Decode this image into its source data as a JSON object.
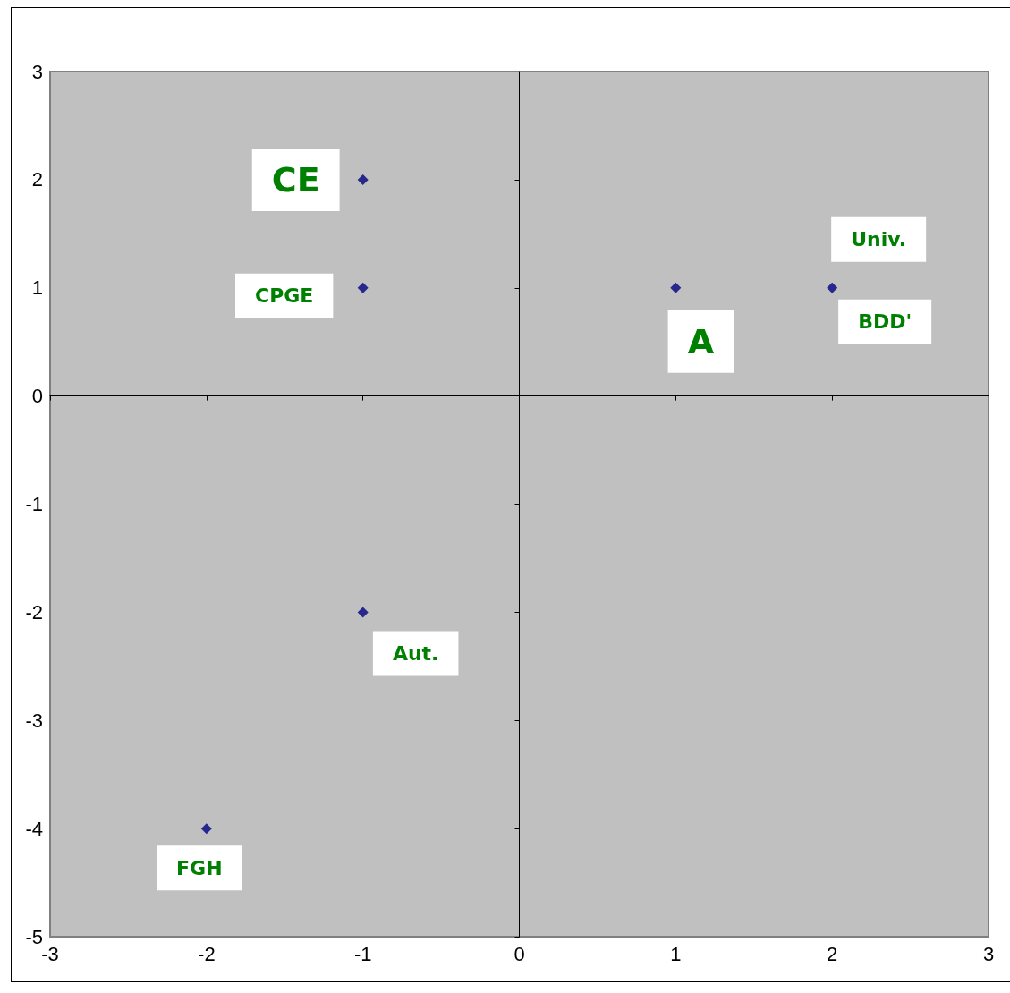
{
  "chart_data": {
    "type": "scatter",
    "x": [
      -1,
      -1,
      1,
      2,
      -1,
      -2
    ],
    "values": [
      2,
      1,
      1,
      1,
      -2,
      -4
    ],
    "color": "#000080",
    "marker": "diamond",
    "xlim": [
      -3,
      3
    ],
    "ylim": [
      -5,
      3
    ],
    "xticks": [
      -3,
      -2,
      -1,
      0,
      1,
      2,
      3
    ],
    "yticks": [
      -5,
      -4,
      -3,
      -2,
      -1,
      0,
      1,
      2,
      3
    ],
    "annotations": [
      {
        "text": "CE",
        "x": -1,
        "y": 2
      },
      {
        "text": "CPGE",
        "x": -1,
        "y": 1
      },
      {
        "text": "A",
        "x": 1,
        "y": 1
      },
      {
        "text": "Univ.",
        "x": 2,
        "y": 1
      },
      {
        "text": "BDD'",
        "x": 2,
        "y": 1
      },
      {
        "text": "Aut.",
        "x": -1,
        "y": -2
      },
      {
        "text": "FGH",
        "x": -2,
        "y": -4
      }
    ]
  }
}
